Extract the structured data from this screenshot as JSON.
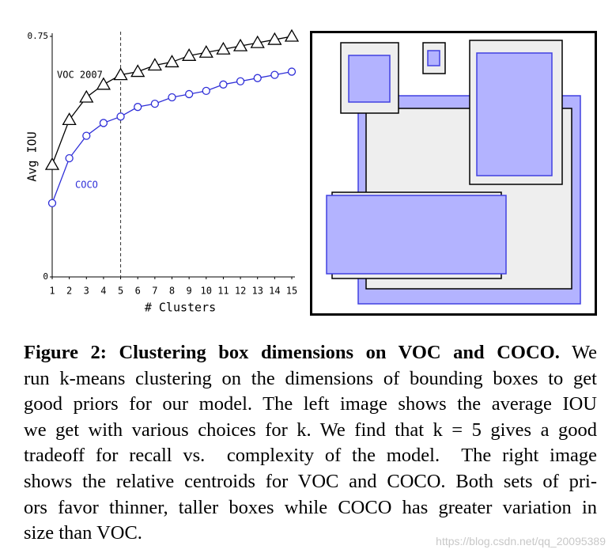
{
  "chart_data": {
    "type": "line",
    "x": [
      1,
      2,
      3,
      4,
      5,
      6,
      7,
      8,
      9,
      10,
      11,
      12,
      13,
      14,
      15
    ],
    "xlim": [
      1,
      15
    ],
    "xticks": [
      1,
      2,
      3,
      4,
      5,
      6,
      7,
      8,
      9,
      10,
      11,
      12,
      13,
      14,
      15
    ],
    "ylim": [
      0,
      0.75
    ],
    "yticks": [
      0,
      0.75
    ],
    "xlabel": "# Clusters",
    "ylabel": "Avg IOU",
    "reference_line_x": 5,
    "series": [
      {
        "name": "VOC 2007",
        "color": "#000000",
        "marker": "triangle",
        "values": [
          0.35,
          0.49,
          0.56,
          0.6,
          0.63,
          0.64,
          0.66,
          0.67,
          0.69,
          0.7,
          0.71,
          0.72,
          0.73,
          0.74,
          0.75
        ]
      },
      {
        "name": "COCO",
        "color": "#2f2fd8",
        "marker": "circle",
        "values": [
          0.23,
          0.37,
          0.44,
          0.48,
          0.5,
          0.53,
          0.54,
          0.56,
          0.57,
          0.58,
          0.6,
          0.61,
          0.62,
          0.63,
          0.64
        ]
      }
    ]
  },
  "caption": {
    "label": "Figure 2:",
    "heading": "Clustering box dimensions on VOC and COCO.",
    "lines": [
      "We",
      "run k-means clustering on the dimensions of bounding boxes to get",
      "good priors for our model. The left image shows the average IOU",
      "we get with various choices for k. We find that k = 5 gives a good",
      "tradeoff for recall vs.  complexity of the model.  The right image",
      "shows the relative centroids for VOC and COCO. Both sets of pri-",
      "ors favor thinner, taller boxes while COCO has greater variation in",
      "size than VOC."
    ]
  },
  "watermark": "https://blog.csdn.net/qq_20095389"
}
